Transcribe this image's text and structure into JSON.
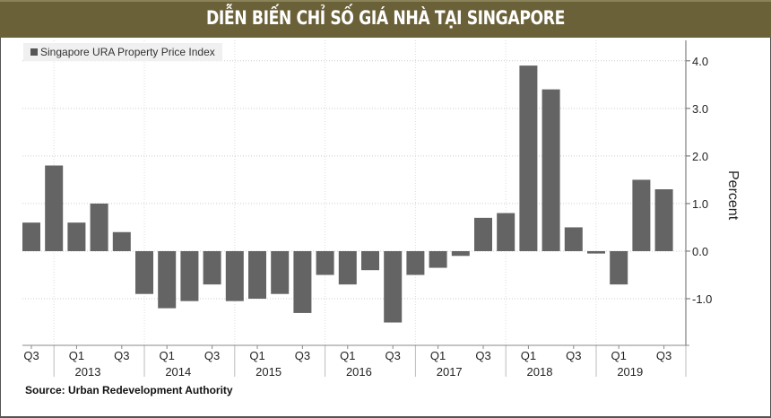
{
  "header": {
    "title": "DIỄN BIẾN CHỈ SỐ GIÁ NHÀ TẠI SINGAPORE",
    "background": "#6b6139"
  },
  "chart_data": {
    "type": "bar",
    "title": "",
    "legend": {
      "entries": [
        "Singapore URA Property Price Index"
      ],
      "placement": "top-left"
    },
    "ylabel": "Percent",
    "xlabel": "",
    "ylim": [
      -1.98,
      4.43
    ],
    "yticks": [
      "4.0",
      "3.0",
      "2.0",
      "1.0",
      "0.0",
      "-1.0"
    ],
    "ytick_values": [
      4,
      3,
      2,
      1,
      0,
      -1
    ],
    "y_axis_side": "right",
    "grid": true,
    "bar_color": "#646464",
    "categories": [
      "2012 Q3",
      "2012 Q4",
      "2013 Q1",
      "2013 Q2",
      "2013 Q3",
      "2013 Q4",
      "2014 Q1",
      "2014 Q2",
      "2014 Q3",
      "2014 Q4",
      "2015 Q1",
      "2015 Q2",
      "2015 Q3",
      "2015 Q4",
      "2016 Q1",
      "2016 Q2",
      "2016 Q3",
      "2016 Q4",
      "2017 Q1",
      "2017 Q2",
      "2017 Q3",
      "2017 Q4",
      "2018 Q1",
      "2018 Q2",
      "2018 Q3",
      "2018 Q4",
      "2019 Q1",
      "2019 Q2",
      "2019 Q3"
    ],
    "series": [
      {
        "name": "Singapore URA Property Price Index",
        "values": [
          0.6,
          1.8,
          0.6,
          1.0,
          0.4,
          -0.9,
          -1.2,
          -1.05,
          -0.7,
          -1.05,
          -1.0,
          -0.9,
          -1.3,
          -0.5,
          -0.7,
          -0.4,
          -1.5,
          -0.5,
          -0.35,
          -0.1,
          0.7,
          0.8,
          3.9,
          3.4,
          0.5,
          -0.05,
          -0.7,
          1.5,
          1.3
        ]
      }
    ],
    "quarter_ticks": [
      {
        "index": 0,
        "label": "Q3"
      },
      {
        "index": 2,
        "label": "Q1"
      },
      {
        "index": 4,
        "label": "Q3"
      },
      {
        "index": 6,
        "label": "Q1"
      },
      {
        "index": 8,
        "label": "Q3"
      },
      {
        "index": 10,
        "label": "Q1"
      },
      {
        "index": 12,
        "label": "Q3"
      },
      {
        "index": 14,
        "label": "Q1"
      },
      {
        "index": 16,
        "label": "Q3"
      },
      {
        "index": 18,
        "label": "Q1"
      },
      {
        "index": 20,
        "label": "Q3"
      },
      {
        "index": 22,
        "label": "Q1"
      },
      {
        "index": 24,
        "label": "Q3"
      },
      {
        "index": 26,
        "label": "Q1"
      },
      {
        "index": 28,
        "label": "Q3"
      }
    ],
    "years": [
      "2013",
      "2014",
      "2015",
      "2016",
      "2017",
      "2018",
      "2019"
    ]
  },
  "source": "Source:  Urban Redevelopment Authority"
}
